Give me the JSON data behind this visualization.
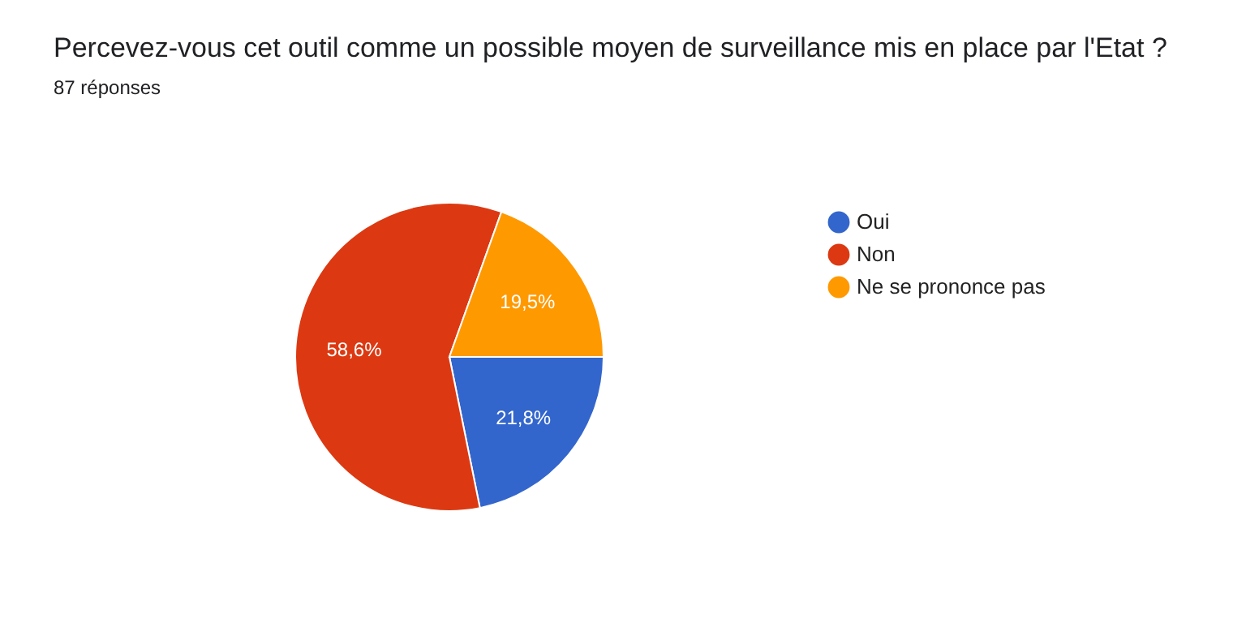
{
  "chart_data": {
    "type": "pie",
    "title": "Percevez-vous cet outil comme un possible moyen de surveillance mis en place par l'Etat ?",
    "subtitle": "87 réponses",
    "categories": [
      "Oui",
      "Non",
      "Ne se prononce pas"
    ],
    "values": [
      21.8,
      58.6,
      19.5
    ],
    "colors": [
      "#3366cc",
      "#dc3912",
      "#ff9900"
    ],
    "value_labels": [
      "21,8%",
      "58,6%",
      "19,5%"
    ],
    "legend": "right"
  }
}
